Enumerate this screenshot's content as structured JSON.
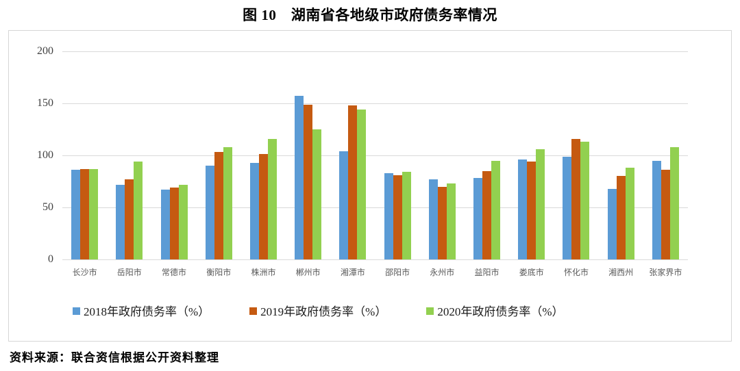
{
  "title": "图 10　湖南省各地级市政府债务率情况",
  "source": "资料来源：联合资信根据公开资料整理",
  "colors": {
    "series_2018": "#5B9BD5",
    "series_2019": "#C55A11",
    "series_2020": "#92D050",
    "gridline": "#D9D9D9",
    "y_axis_text": "#404040",
    "x_axis_text": "#595959"
  },
  "chart_data": {
    "type": "bar",
    "title": "图 10　湖南省各地级市政府债务率情况",
    "xlabel": "",
    "ylabel": "",
    "ylim": [
      0,
      200
    ],
    "yticks": [
      0,
      50,
      100,
      150,
      200
    ],
    "grid": true,
    "legend_position": "bottom",
    "categories": [
      "长沙市",
      "岳阳市",
      "常德市",
      "衡阳市",
      "株洲市",
      "郴州市",
      "湘潭市",
      "邵阳市",
      "永州市",
      "益阳市",
      "娄底市",
      "怀化市",
      "湘西州",
      "张家界市"
    ],
    "series": [
      {
        "name": "2018年政府债务率（%）",
        "color": "#5B9BD5",
        "values": [
          86,
          72,
          67,
          90,
          93,
          157,
          104,
          83,
          77,
          78,
          96,
          99,
          68,
          95
        ]
      },
      {
        "name": "2019年政府债务率（%）",
        "color": "#C55A11",
        "values": [
          87,
          77,
          69,
          103,
          101,
          149,
          148,
          81,
          70,
          85,
          94,
          116,
          80,
          86
        ]
      },
      {
        "name": "2020年政府债务率（%）",
        "color": "#92D050",
        "values": [
          87,
          94,
          72,
          108,
          116,
          125,
          144,
          84,
          73,
          95,
          106,
          113,
          88,
          108
        ]
      }
    ]
  }
}
